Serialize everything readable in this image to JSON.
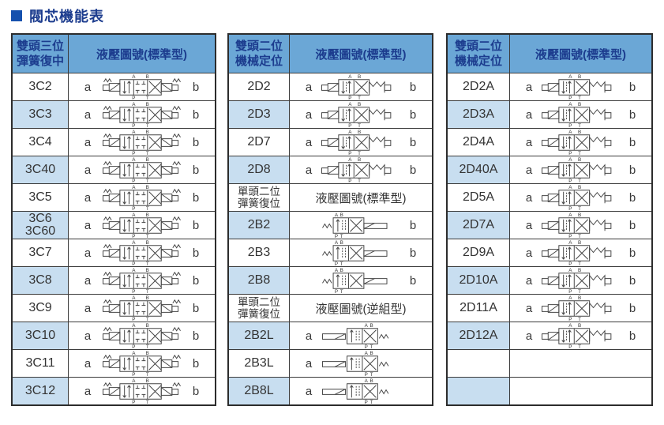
{
  "page": {
    "title": "閥芯機能表"
  },
  "ports": {
    "a": "a",
    "b": "b",
    "A": "A",
    "B": "B",
    "P": "P",
    "T": "T"
  },
  "colors": {
    "header_blue": "#6ba7d6",
    "row_alt_blue": "#c8def0",
    "header_text_navy": "#1c3c8e",
    "title_square_blue": "#1551ae",
    "border_dark": "#3b3b3b"
  },
  "tables": [
    {
      "id": "table-double-head-three-position",
      "header": {
        "line1": "雙頭三位",
        "line2": "彈簧復中",
        "title": "液壓圖號(標準型)"
      },
      "groups": [
        {
          "sym": "3c",
          "rows": [
            {
              "code": "3C2",
              "a": "a",
              "b": "b"
            },
            {
              "code": "3C3",
              "a": "a",
              "b": "b"
            },
            {
              "code": "3C4",
              "a": "a",
              "b": "b"
            },
            {
              "code": "3C40",
              "a": "a",
              "b": "b"
            },
            {
              "code": "3C5",
              "a": "a",
              "b": "b"
            },
            {
              "code": "3C6",
              "code2": "3C60",
              "a": "a",
              "b": "b"
            },
            {
              "code": "3C7",
              "a": "a",
              "b": "b"
            },
            {
              "code": "3C8",
              "a": "a",
              "b": "b"
            },
            {
              "code": "3C9",
              "a": "a",
              "b": "b"
            },
            {
              "code": "3C10",
              "a": "a",
              "b": "b"
            },
            {
              "code": "3C11",
              "a": "a",
              "b": "b"
            },
            {
              "code": "3C12",
              "a": "a",
              "b": "b"
            }
          ]
        }
      ]
    },
    {
      "id": "table-two-position-detent-and-spring-return",
      "header": {
        "line1": "雙頭二位",
        "line2": "機械定位",
        "title": "液壓圖號(標準型)"
      },
      "groups": [
        {
          "sym": "2d",
          "rows": [
            {
              "code": "2D2",
              "a": "a",
              "b": "b"
            },
            {
              "code": "2D3",
              "a": "a",
              "b": "b"
            },
            {
              "code": "2D7",
              "a": "a",
              "b": "b"
            },
            {
              "code": "2D8",
              "a": "a",
              "b": "b"
            }
          ]
        },
        {
          "sub": {
            "line1": "單頭二位",
            "line2": "彈簧復位",
            "title": "液壓圖號(標準型)"
          },
          "sym": "2b",
          "rows": [
            {
              "code": "2B2",
              "a": "",
              "b": "b"
            },
            {
              "code": "2B3",
              "a": "",
              "b": "b"
            },
            {
              "code": "2B8",
              "a": "",
              "b": "b"
            }
          ]
        },
        {
          "sub": {
            "line1": "單頭二位",
            "line2": "彈簧復位",
            "title": "液壓圖號(逆組型)"
          },
          "sym": "2bl",
          "rows": [
            {
              "code": "2B2L",
              "a": "a",
              "b": ""
            },
            {
              "code": "2B3L",
              "a": "a",
              "b": ""
            },
            {
              "code": "2B8L",
              "a": "a",
              "b": ""
            }
          ]
        }
      ]
    },
    {
      "id": "table-double-head-two-position-a-type",
      "header": {
        "line1": "雙頭二位",
        "line2": "機械定位",
        "title": "液壓圖號(標準型)"
      },
      "groups": [
        {
          "sym": "2d",
          "rows": [
            {
              "code": "2D2A",
              "a": "a",
              "b": "b"
            },
            {
              "code": "2D3A",
              "a": "a",
              "b": "b"
            },
            {
              "code": "2D4A",
              "a": "a",
              "b": "b"
            },
            {
              "code": "2D40A",
              "a": "a",
              "b": "b"
            },
            {
              "code": "2D5A",
              "a": "a",
              "b": "b"
            },
            {
              "code": "2D7A",
              "a": "a",
              "b": "b"
            },
            {
              "code": "2D9A",
              "a": "a",
              "b": "b"
            },
            {
              "code": "2D10A",
              "a": "a",
              "b": "b"
            },
            {
              "code": "2D11A",
              "a": "a",
              "b": "b"
            },
            {
              "code": "2D12A",
              "a": "a",
              "b": "b"
            },
            {
              "code": "",
              "a": "",
              "b": "",
              "empty": true
            },
            {
              "code": "",
              "a": "",
              "b": "",
              "empty": true
            }
          ]
        }
      ]
    }
  ]
}
